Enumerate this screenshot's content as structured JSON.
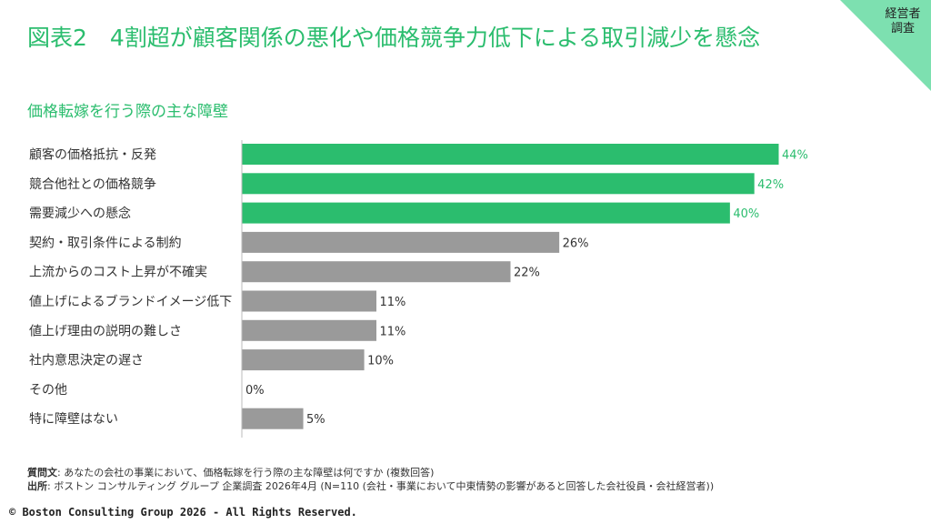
{
  "header": {
    "title": "図表2　4割超が顧客関係の悪化や価格競争力低下による取引減少を懸念",
    "badge_line1": "経営者",
    "badge_line2": "調査"
  },
  "subtitle": "価格転嫁を行う際の主な障壁",
  "chart_data": {
    "type": "bar",
    "orientation": "horizontal",
    "categories": [
      "顧客の価格抵抗・反発",
      "競合他社との価格競争",
      "需要減少への懸念",
      "契約・取引条件による制約",
      "上流からのコスト上昇が不確実",
      "値上げによるブランドイメージ低下",
      "値上げ理由の説明の難しさ",
      "社内意思決定の遅さ",
      "その他",
      "特に障壁はない"
    ],
    "values": [
      44,
      42,
      40,
      26,
      22,
      11,
      11,
      10,
      0,
      5
    ],
    "value_labels": [
      "44%",
      "42%",
      "40%",
      "26%",
      "22%",
      "11%",
      "11%",
      "10%",
      "0%",
      "5%"
    ],
    "highlight_count": 3,
    "highlight_color": "#2bbd6e",
    "base_color": "#9a9a9a",
    "xlim": [
      0,
      44
    ]
  },
  "footnote": {
    "question_label": "質問文",
    "question_text": ": あなたの会社の事業において、価格転嫁を行う際の主な障壁は何ですか (複数回答)",
    "source_label": "出所",
    "source_text": ": ボストン コンサルティング グループ 企業調査 2026年4月 (N=110 (会社・事業において中東情勢の影響があると回答した会社役員・会社経営者))"
  },
  "copyright": "© Boston Consulting Group 2026 - All Rights Reserved."
}
